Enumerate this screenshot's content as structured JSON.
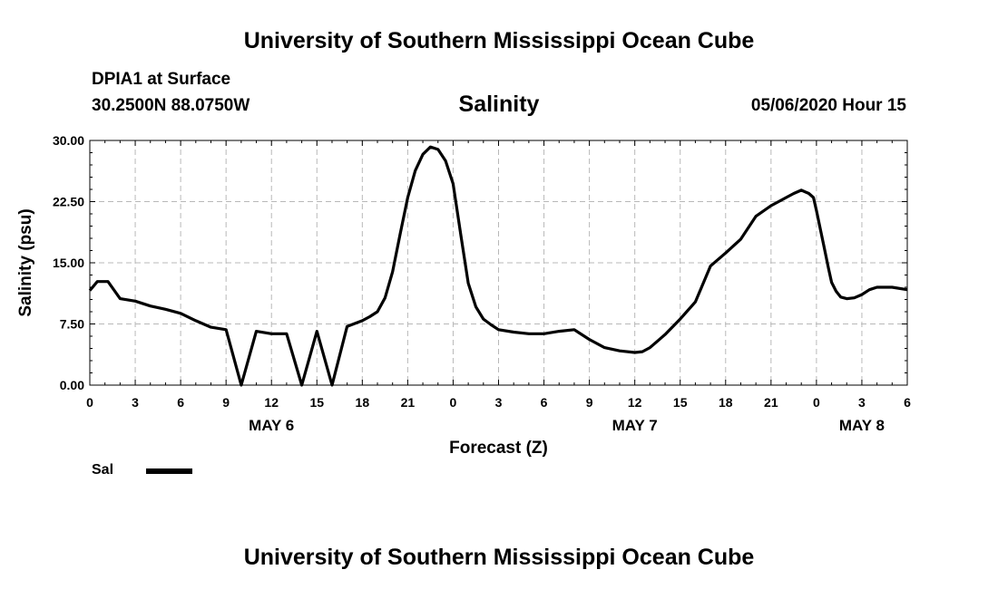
{
  "header": {
    "title": "University of Southern Mississippi Ocean Cube",
    "station": "DPIA1 at Surface",
    "coords": "30.2500N 88.0750W",
    "variable": "Salinity",
    "timestamp": "05/06/2020 Hour 15"
  },
  "footer": {
    "title": "University of Southern Mississippi Ocean Cube"
  },
  "legend": {
    "label": "Sal"
  },
  "chart_data": {
    "type": "line",
    "title": "Salinity",
    "xlabel": "Forecast (Z)",
    "ylabel": "Salinity (psu)",
    "xlim": [
      0,
      54
    ],
    "ylim": [
      0,
      30
    ],
    "x_unit": "forecast hours from 00Z May 6",
    "xtick_hours": [
      0,
      3,
      6,
      9,
      12,
      15,
      18,
      21,
      24,
      27,
      30,
      33,
      36,
      39,
      42,
      45,
      48,
      51,
      54
    ],
    "xtick_labels": [
      "0",
      "3",
      "6",
      "9",
      "12",
      "15",
      "18",
      "21",
      "0",
      "3",
      "6",
      "9",
      "12",
      "15",
      "18",
      "21",
      "0",
      "3",
      "6"
    ],
    "yticks": [
      0,
      7.5,
      15,
      22.5,
      30
    ],
    "ytick_labels": [
      "0.00",
      "7.50",
      "15.00",
      "22.50",
      "30.00"
    ],
    "day_labels": [
      {
        "hour": 12,
        "label": "MAY 6"
      },
      {
        "hour": 36,
        "label": "MAY 7"
      },
      {
        "hour": 51,
        "label": "MAY 8"
      }
    ],
    "grid": true,
    "legend_position": "bottom-left",
    "color": "#000000",
    "series": [
      {
        "name": "Sal",
        "x": [
          0,
          0.5,
          1.2,
          2,
          3,
          4,
          5,
          6,
          7,
          8,
          9,
          10,
          11,
          12,
          13,
          14,
          15,
          16,
          17,
          18,
          18.5,
          19,
          19.5,
          20,
          20.5,
          21,
          21.5,
          22,
          22.5,
          23,
          23.5,
          24,
          24.5,
          25,
          25.5,
          26,
          26.5,
          27,
          28,
          29,
          30,
          31,
          32,
          33,
          34,
          35,
          36,
          36.5,
          37,
          37.5,
          38,
          39,
          40,
          41,
          42,
          43,
          44,
          45,
          45.5,
          46,
          46.5,
          47,
          47.5,
          47.8,
          48,
          48.5,
          48.8,
          49,
          49.3,
          49.6,
          50,
          50.5,
          51,
          51.5,
          52,
          53,
          54
        ],
        "y": [
          11.6,
          12.7,
          12.7,
          10.6,
          10.3,
          9.7,
          9.3,
          8.8,
          7.9,
          7.1,
          6.8,
          0.0,
          6.6,
          6.3,
          6.3,
          0.0,
          6.6,
          0.0,
          7.2,
          7.9,
          8.4,
          9.0,
          10.7,
          13.9,
          18.5,
          23.0,
          26.3,
          28.3,
          29.2,
          28.9,
          27.5,
          24.7,
          18.5,
          12.5,
          9.6,
          8.1,
          7.4,
          6.8,
          6.5,
          6.3,
          6.3,
          6.6,
          6.8,
          5.6,
          4.6,
          4.2,
          4.0,
          4.1,
          4.6,
          5.4,
          6.2,
          8.1,
          10.2,
          14.6,
          16.2,
          17.9,
          20.7,
          22.0,
          22.5,
          23.0,
          23.5,
          23.9,
          23.5,
          23.0,
          21.4,
          17.0,
          14.3,
          12.6,
          11.5,
          10.8,
          10.6,
          10.7,
          11.1,
          11.7,
          12.0,
          12.0,
          11.7
        ]
      }
    ]
  }
}
